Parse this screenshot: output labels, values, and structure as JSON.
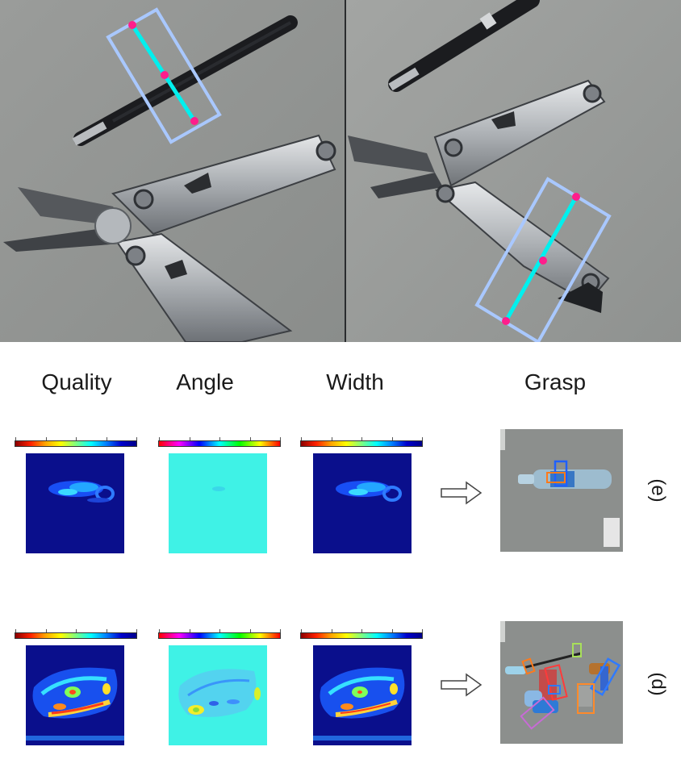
{
  "columns": {
    "quality": "Quality",
    "angle": "Angle",
    "width": "Width",
    "grasp": "Grasp"
  },
  "rows": {
    "e": "(e)",
    "d": "(d)"
  },
  "colors": {
    "grasp_box": "#a9c8ff",
    "grasp_line": "#00f0ee",
    "grasp_point": "#ff1e8c",
    "hm_background": "#0a0f8c",
    "angle_background": "#3ff2e6"
  },
  "icons": {
    "arrow": "hollow-right-arrow-icon"
  }
}
